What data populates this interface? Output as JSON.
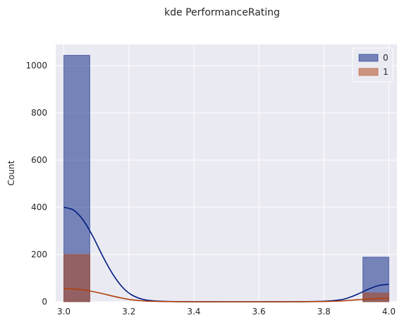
{
  "chart_data": {
    "type": "bar",
    "title": "kde PerformanceRating",
    "xlabel": "",
    "ylabel": "Count",
    "xlim": [
      2.975,
      4.025
    ],
    "ylim": [
      0,
      1090
    ],
    "xticks": [
      "3.0",
      "3.2",
      "3.4",
      "3.6",
      "3.8",
      "4.0"
    ],
    "xtick_values": [
      3.0,
      3.2,
      3.4,
      3.6,
      3.8,
      4.0
    ],
    "yticks": [
      "0",
      "200",
      "400",
      "600",
      "800",
      "1000"
    ],
    "ytick_values": [
      0,
      200,
      400,
      600,
      800,
      1000
    ],
    "grid": true,
    "legend_position": "top-right",
    "bin_width": 0.08,
    "series": [
      {
        "name": "0",
        "color": "#001c7f",
        "bins": [
          {
            "x0": 3.0,
            "x1": 3.08,
            "value": 1044
          },
          {
            "x0": 3.92,
            "x1": 4.0,
            "value": 189
          }
        ],
        "kde": {
          "x": [
            3.0,
            3.03,
            3.06,
            3.09,
            3.12,
            3.15,
            3.18,
            3.21,
            3.25,
            3.3,
            3.4,
            3.5,
            3.6,
            3.7,
            3.8,
            3.85,
            3.88,
            3.91,
            3.94,
            3.97,
            4.0
          ],
          "y": [
            400,
            388,
            345,
            275,
            192,
            118,
            62,
            28,
            8,
            2,
            0,
            0,
            0,
            0,
            2,
            8,
            19,
            36,
            55,
            69,
            74
          ]
        }
      },
      {
        "name": "1",
        "color": "#b1400d",
        "bins": [
          {
            "x0": 3.0,
            "x1": 3.08,
            "value": 200
          },
          {
            "x0": 3.92,
            "x1": 4.0,
            "value": 37
          }
        ],
        "kde": {
          "x": [
            3.0,
            3.03,
            3.06,
            3.09,
            3.12,
            3.15,
            3.18,
            3.21,
            3.25,
            3.3,
            3.4,
            3.5,
            3.6,
            3.7,
            3.8,
            3.85,
            3.88,
            3.91,
            3.94,
            3.97,
            4.0
          ],
          "y": [
            55,
            54,
            50,
            43,
            34,
            24,
            15,
            8,
            3,
            1,
            0,
            0,
            0,
            0,
            1,
            3,
            6,
            9,
            12,
            14,
            15
          ]
        }
      }
    ]
  }
}
